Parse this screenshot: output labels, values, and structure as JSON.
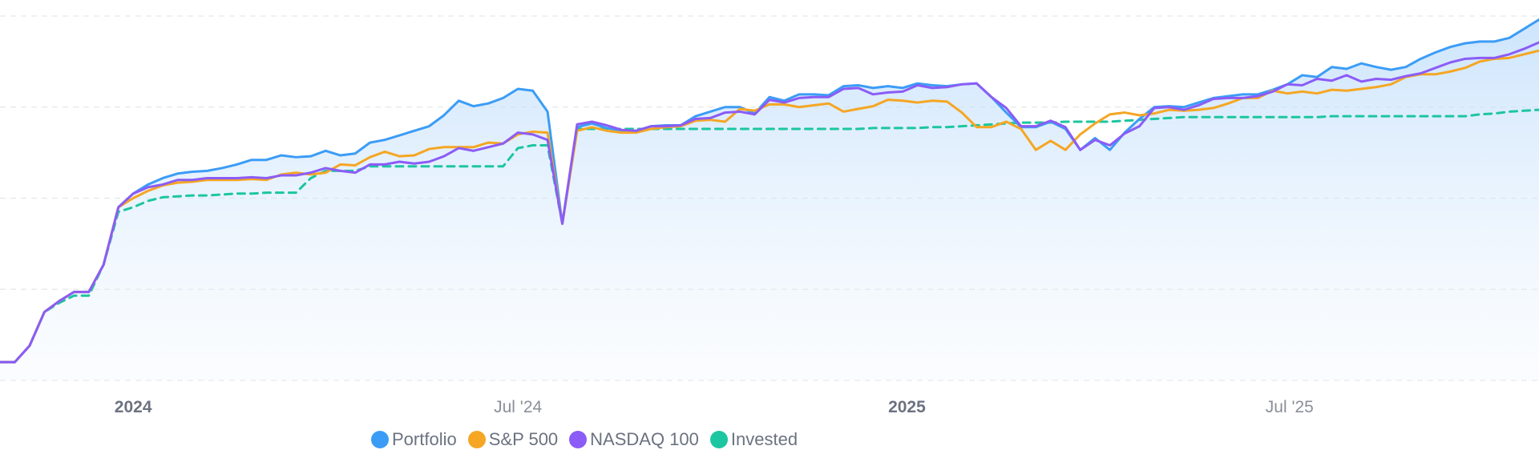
{
  "chart_data": {
    "type": "line",
    "x": [
      "2023-10-30",
      "2023-11-06",
      "2023-11-13",
      "2023-11-20",
      "2023-11-27",
      "2023-12-04",
      "2023-12-11",
      "2023-12-18",
      "2023-12-25",
      "2024-01-01",
      "2024-01-08",
      "2024-01-15",
      "2024-01-22",
      "2024-01-29",
      "2024-02-05",
      "2024-02-12",
      "2024-02-19",
      "2024-02-26",
      "2024-03-04",
      "2024-03-11",
      "2024-03-18",
      "2024-03-25",
      "2024-04-01",
      "2024-04-08",
      "2024-04-15",
      "2024-04-22",
      "2024-04-29",
      "2024-05-06",
      "2024-05-13",
      "2024-05-20",
      "2024-05-27",
      "2024-06-03",
      "2024-06-10",
      "2024-06-17",
      "2024-06-24",
      "2024-07-01",
      "2024-07-08",
      "2024-07-15",
      "2024-07-22",
      "2024-07-29",
      "2024-08-05",
      "2024-08-12",
      "2024-08-19",
      "2024-08-26",
      "2024-09-02",
      "2024-09-09",
      "2024-09-16",
      "2024-09-23",
      "2024-09-30",
      "2024-10-07",
      "2024-10-14",
      "2024-10-21",
      "2024-10-28",
      "2024-11-04",
      "2024-11-11",
      "2024-11-18",
      "2024-11-25",
      "2024-12-02",
      "2024-12-09",
      "2024-12-16",
      "2024-12-23",
      "2024-12-30",
      "2025-01-06",
      "2025-01-13",
      "2025-01-20",
      "2025-01-27",
      "2025-02-03",
      "2025-02-10",
      "2025-02-17",
      "2025-02-24",
      "2025-03-03",
      "2025-03-10",
      "2025-03-17",
      "2025-03-24",
      "2025-03-31",
      "2025-04-07",
      "2025-04-14",
      "2025-04-21",
      "2025-04-28",
      "2025-05-05",
      "2025-05-12",
      "2025-05-19",
      "2025-05-26",
      "2025-06-02",
      "2025-06-09",
      "2025-06-16",
      "2025-06-23",
      "2025-06-30",
      "2025-07-07",
      "2025-07-14",
      "2025-07-21",
      "2025-07-28",
      "2025-08-04",
      "2025-08-11",
      "2025-08-18",
      "2025-08-25",
      "2025-09-01",
      "2025-09-08",
      "2025-09-15",
      "2025-09-22",
      "2025-09-29",
      "2025-10-06",
      "2025-10-13",
      "2025-10-20",
      "2025-10-27"
    ],
    "x_ticks": [
      {
        "label": "2024",
        "date": "2024-01-01",
        "bold": true
      },
      {
        "label": "Jul '24",
        "date": "2024-07-01",
        "bold": false
      },
      {
        "label": "2025",
        "date": "2025-01-01",
        "bold": true
      },
      {
        "label": "Jul '25",
        "date": "2025-07-01",
        "bold": false
      }
    ],
    "ylim": [
      0,
      4
    ],
    "y_gridlines": [
      0,
      1,
      2,
      3,
      4
    ],
    "grid": true,
    "legend_position": "bottom-center",
    "series": [
      {
        "name": "Portfolio",
        "color": "#3b9cf6",
        "style": "solid",
        "fill": true,
        "values": [
          0.2,
          0.2,
          0.38,
          0.75,
          0.87,
          0.97,
          0.97,
          1.27,
          1.9,
          2.05,
          2.15,
          2.22,
          2.27,
          2.29,
          2.3,
          2.33,
          2.37,
          2.42,
          2.42,
          2.47,
          2.45,
          2.46,
          2.52,
          2.47,
          2.49,
          2.61,
          2.64,
          2.69,
          2.74,
          2.79,
          2.91,
          3.07,
          3.01,
          3.04,
          3.1,
          3.2,
          3.18,
          2.95,
          1.72,
          2.78,
          2.82,
          2.77,
          2.74,
          2.74,
          2.79,
          2.8,
          2.8,
          2.9,
          2.95,
          3.0,
          3.0,
          2.93,
          3.11,
          3.07,
          3.14,
          3.14,
          3.13,
          3.23,
          3.24,
          3.21,
          3.23,
          3.21,
          3.26,
          3.24,
          3.23,
          3.25,
          3.26,
          3.11,
          2.94,
          2.78,
          2.78,
          2.84,
          2.76,
          2.53,
          2.66,
          2.53,
          2.72,
          2.87,
          3.0,
          3.01,
          3.0,
          3.05,
          3.1,
          3.12,
          3.14,
          3.14,
          3.19,
          3.25,
          3.35,
          3.33,
          3.44,
          3.42,
          3.48,
          3.44,
          3.41,
          3.44,
          3.53,
          3.6,
          3.66,
          3.7,
          3.72,
          3.72,
          3.76,
          3.86,
          3.96
        ]
      },
      {
        "name": "S&P 500",
        "color": "#f5a623",
        "style": "solid",
        "fill": false,
        "values": [
          0.2,
          0.2,
          0.38,
          0.75,
          0.87,
          0.97,
          0.97,
          1.27,
          1.9,
          2.0,
          2.08,
          2.14,
          2.17,
          2.18,
          2.2,
          2.2,
          2.2,
          2.21,
          2.2,
          2.26,
          2.28,
          2.26,
          2.28,
          2.37,
          2.36,
          2.45,
          2.51,
          2.46,
          2.47,
          2.54,
          2.56,
          2.56,
          2.56,
          2.61,
          2.6,
          2.7,
          2.73,
          2.72,
          1.72,
          2.74,
          2.78,
          2.74,
          2.72,
          2.72,
          2.76,
          2.78,
          2.79,
          2.85,
          2.86,
          2.84,
          2.98,
          2.96,
          3.03,
          3.03,
          3.0,
          3.02,
          3.04,
          2.95,
          2.98,
          3.01,
          3.08,
          3.07,
          3.05,
          3.07,
          3.06,
          2.94,
          2.78,
          2.78,
          2.84,
          2.76,
          2.53,
          2.63,
          2.53,
          2.7,
          2.82,
          2.92,
          2.94,
          2.91,
          2.93,
          2.97,
          2.96,
          2.97,
          2.99,
          3.04,
          3.1,
          3.1,
          3.18,
          3.15,
          3.17,
          3.15,
          3.19,
          3.18,
          3.2,
          3.22,
          3.25,
          3.33,
          3.36,
          3.36,
          3.39,
          3.43,
          3.5,
          3.53,
          3.54,
          3.58,
          3.62
        ]
      },
      {
        "name": "NASDAQ 100",
        "color": "#8b5cf6",
        "style": "solid",
        "fill": false,
        "values": [
          0.2,
          0.2,
          0.38,
          0.75,
          0.87,
          0.97,
          0.97,
          1.27,
          1.9,
          2.05,
          2.12,
          2.15,
          2.2,
          2.2,
          2.22,
          2.22,
          2.22,
          2.23,
          2.22,
          2.25,
          2.25,
          2.28,
          2.33,
          2.3,
          2.28,
          2.37,
          2.37,
          2.4,
          2.38,
          2.4,
          2.46,
          2.55,
          2.52,
          2.56,
          2.6,
          2.72,
          2.7,
          2.64,
          1.72,
          2.81,
          2.84,
          2.8,
          2.75,
          2.74,
          2.79,
          2.79,
          2.8,
          2.87,
          2.88,
          2.94,
          2.95,
          2.92,
          3.08,
          3.05,
          3.1,
          3.11,
          3.11,
          3.2,
          3.21,
          3.14,
          3.16,
          3.17,
          3.24,
          3.21,
          3.22,
          3.25,
          3.26,
          3.11,
          2.99,
          2.79,
          2.79,
          2.85,
          2.78,
          2.53,
          2.64,
          2.58,
          2.71,
          2.79,
          2.99,
          3.0,
          2.97,
          3.02,
          3.09,
          3.1,
          3.1,
          3.12,
          3.17,
          3.25,
          3.24,
          3.31,
          3.29,
          3.35,
          3.28,
          3.31,
          3.3,
          3.34,
          3.37,
          3.43,
          3.49,
          3.53,
          3.54,
          3.54,
          3.58,
          3.64,
          3.71
        ]
      },
      {
        "name": "Invested",
        "color": "#1cc6a0",
        "style": "dashed",
        "fill": false,
        "values": [
          0.2,
          0.2,
          0.38,
          0.75,
          0.85,
          0.93,
          0.93,
          1.27,
          1.85,
          1.9,
          1.97,
          2.01,
          2.02,
          2.03,
          2.03,
          2.04,
          2.05,
          2.05,
          2.06,
          2.06,
          2.06,
          2.22,
          2.3,
          2.3,
          2.3,
          2.35,
          2.35,
          2.35,
          2.35,
          2.35,
          2.35,
          2.35,
          2.35,
          2.35,
          2.35,
          2.55,
          2.58,
          2.58,
          1.72,
          2.76,
          2.76,
          2.76,
          2.76,
          2.76,
          2.76,
          2.76,
          2.76,
          2.76,
          2.76,
          2.76,
          2.76,
          2.76,
          2.76,
          2.76,
          2.76,
          2.76,
          2.76,
          2.76,
          2.76,
          2.77,
          2.77,
          2.77,
          2.77,
          2.78,
          2.78,
          2.79,
          2.8,
          2.81,
          2.82,
          2.83,
          2.83,
          2.83,
          2.84,
          2.84,
          2.84,
          2.84,
          2.85,
          2.86,
          2.87,
          2.88,
          2.89,
          2.89,
          2.89,
          2.89,
          2.89,
          2.89,
          2.89,
          2.89,
          2.89,
          2.89,
          2.9,
          2.9,
          2.9,
          2.9,
          2.9,
          2.9,
          2.9,
          2.9,
          2.9,
          2.9,
          2.92,
          2.93,
          2.95,
          2.96,
          2.97
        ]
      }
    ]
  }
}
